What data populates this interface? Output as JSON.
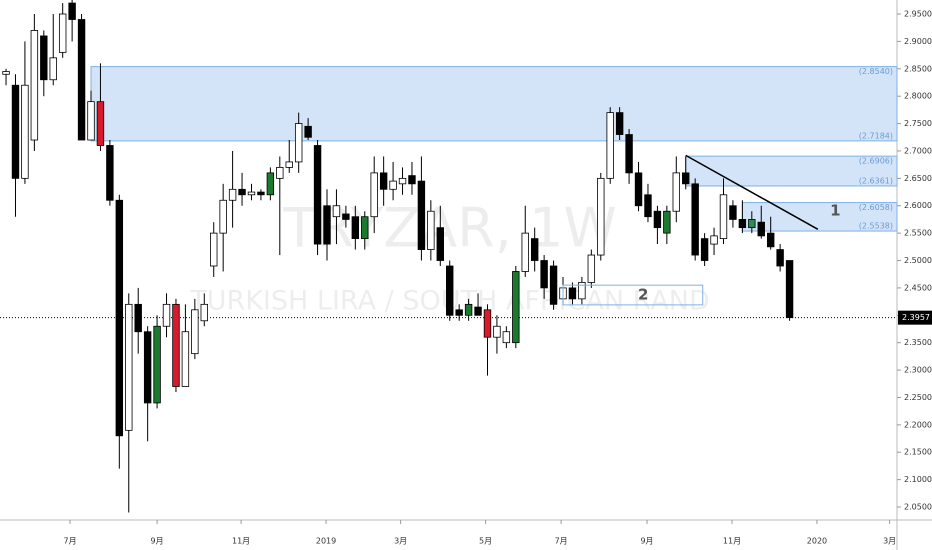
{
  "chart_data": {
    "type": "candlestick",
    "title": "TRYZAR, 1W",
    "subtitle": "TURKISH LIRA / SOUTH AFRICAN RAND",
    "x": [
      0,
      1,
      2,
      3,
      4,
      5,
      6,
      7,
      8,
      9,
      10,
      11,
      12,
      13,
      14,
      15,
      16,
      17,
      18,
      19,
      20,
      21,
      22,
      23,
      24,
      25,
      26,
      27,
      28,
      29,
      30,
      31,
      32,
      33,
      34,
      35,
      36,
      37,
      38,
      39,
      40,
      41,
      42,
      43,
      44,
      45,
      46,
      47,
      48,
      49,
      50,
      51,
      52,
      53,
      54,
      55,
      56,
      57,
      58,
      59,
      60,
      61,
      62,
      63,
      64,
      65,
      66,
      67,
      68,
      69,
      70,
      71,
      72,
      73,
      74,
      75,
      76,
      77,
      78,
      79,
      80,
      81,
      82,
      83
    ],
    "open": [
      2.84,
      2.82,
      2.65,
      2.72,
      2.91,
      2.83,
      2.88,
      2.97,
      2.94,
      2.72,
      2.79,
      2.71,
      2.61,
      2.19,
      2.42,
      2.37,
      2.24,
      2.38,
      2.42,
      2.27,
      2.33,
      2.39,
      2.49,
      2.55,
      2.61,
      2.63,
      2.62,
      2.625,
      2.62,
      2.65,
      2.67,
      2.68,
      2.745,
      2.71,
      2.6,
      2.58,
      2.585,
      2.58,
      2.54,
      2.58,
      2.66,
      2.63,
      2.64,
      2.655,
      2.645,
      2.52,
      2.56,
      2.49,
      2.41,
      2.4,
      2.415,
      2.41,
      2.36,
      2.35,
      2.35,
      2.48,
      2.54,
      2.5,
      2.49,
      2.43,
      2.45,
      2.43,
      2.46,
      2.51,
      2.65,
      2.77,
      2.73,
      2.66,
      2.62,
      2.59,
      2.55,
      2.59,
      2.66,
      2.64,
      2.54,
      2.53,
      2.54,
      2.6,
      2.575,
      2.56,
      2.57,
      2.55,
      2.52,
      2.5
    ],
    "high": [
      2.85,
      2.84,
      2.9,
      2.95,
      2.92,
      2.95,
      2.97,
      2.98,
      2.95,
      2.81,
      2.86,
      2.72,
      2.62,
      2.44,
      2.45,
      2.38,
      2.4,
      2.44,
      2.43,
      2.42,
      2.43,
      2.44,
      2.57,
      2.64,
      2.7,
      2.66,
      2.64,
      2.63,
      2.67,
      2.69,
      2.72,
      2.77,
      2.76,
      2.72,
      2.63,
      2.63,
      2.6,
      2.6,
      2.59,
      2.69,
      2.69,
      2.68,
      2.67,
      2.68,
      2.69,
      2.61,
      2.6,
      2.5,
      2.42,
      2.43,
      2.44,
      2.42,
      2.4,
      2.38,
      2.49,
      2.6,
      2.56,
      2.51,
      2.5,
      2.47,
      2.46,
      2.47,
      2.52,
      2.66,
      2.78,
      2.78,
      2.74,
      2.68,
      2.64,
      2.6,
      2.6,
      2.69,
      2.69,
      2.65,
      2.55,
      2.56,
      2.65,
      2.61,
      2.61,
      2.59,
      2.6,
      2.58,
      2.53,
      2.5
    ],
    "low": [
      2.82,
      2.58,
      2.64,
      2.7,
      2.8,
      2.82,
      2.87,
      2.9,
      2.72,
      2.72,
      2.7,
      2.6,
      2.12,
      2.04,
      2.33,
      2.17,
      2.23,
      2.36,
      2.26,
      2.27,
      2.32,
      2.38,
      2.47,
      2.48,
      2.56,
      2.6,
      2.61,
      2.61,
      2.61,
      2.51,
      2.66,
      2.66,
      2.72,
      2.51,
      2.5,
      2.53,
      2.56,
      2.52,
      2.52,
      2.55,
      2.6,
      2.61,
      2.62,
      2.62,
      2.5,
      2.5,
      2.49,
      2.39,
      2.39,
      2.39,
      2.4,
      2.29,
      2.33,
      2.34,
      2.34,
      2.47,
      2.48,
      2.43,
      2.41,
      2.42,
      2.42,
      2.42,
      2.45,
      2.5,
      2.64,
      2.72,
      2.64,
      2.59,
      2.57,
      2.53,
      2.53,
      2.57,
      2.63,
      2.5,
      2.49,
      2.51,
      2.53,
      2.56,
      2.55,
      2.55,
      2.54,
      2.52,
      2.48,
      2.39
    ],
    "close": [
      2.845,
      2.65,
      2.82,
      2.92,
      2.83,
      2.87,
      2.95,
      2.94,
      2.72,
      2.79,
      2.71,
      2.61,
      2.18,
      2.42,
      2.37,
      2.24,
      2.38,
      2.42,
      2.27,
      2.37,
      2.41,
      2.42,
      2.55,
      2.61,
      2.63,
      2.62,
      2.625,
      2.62,
      2.66,
      2.67,
      2.68,
      2.75,
      2.725,
      2.53,
      2.53,
      2.6,
      2.575,
      2.54,
      2.58,
      2.66,
      2.63,
      2.645,
      2.65,
      2.64,
      2.52,
      2.59,
      2.5,
      2.4,
      2.4,
      2.42,
      2.4,
      2.36,
      2.38,
      2.37,
      2.48,
      2.55,
      2.5,
      2.45,
      2.42,
      2.45,
      2.43,
      2.46,
      2.51,
      2.65,
      2.77,
      2.73,
      2.66,
      2.6,
      2.58,
      2.56,
      2.59,
      2.66,
      2.64,
      2.51,
      2.5,
      2.545,
      2.62,
      2.575,
      2.56,
      2.575,
      2.545,
      2.525,
      2.49,
      2.3957
    ],
    "colors": [
      null,
      null,
      null,
      null,
      null,
      null,
      null,
      null,
      null,
      null,
      "#d81b2c",
      null,
      null,
      null,
      null,
      null,
      "#1b7a2d",
      null,
      "#d81b2c",
      null,
      null,
      null,
      null,
      null,
      null,
      null,
      null,
      null,
      "#1b7a2d",
      null,
      null,
      null,
      null,
      null,
      null,
      null,
      null,
      null,
      "#1b7a2d",
      null,
      null,
      null,
      null,
      null,
      null,
      null,
      null,
      null,
      null,
      "#1b7a2d",
      null,
      "#d81b2c",
      null,
      null,
      "#1b7a2d",
      null,
      null,
      null,
      null,
      null,
      null,
      null,
      null,
      null,
      null,
      null,
      null,
      null,
      null,
      null,
      "#1b7a2d",
      null,
      null,
      null,
      null,
      null,
      null,
      null,
      null,
      "#2e8b57",
      null,
      null,
      null,
      null
    ],
    "up_color": "#ffffff",
    "down_color": "#000000",
    "xlim": [
      -0.64,
      94.38
    ],
    "xticks": [
      {
        "value": 6.78,
        "label": "7月"
      },
      {
        "value": 16.0,
        "label": "9月"
      },
      {
        "value": 24.9,
        "label": "11月"
      },
      {
        "value": 33.9,
        "label": "2019"
      },
      {
        "value": 41.8,
        "label": "3月"
      },
      {
        "value": 50.8,
        "label": "5月"
      },
      {
        "value": 58.8,
        "label": "7月"
      },
      {
        "value": 67.9,
        "label": "9月"
      },
      {
        "value": 76.9,
        "label": "11月"
      },
      {
        "value": 85.9,
        "label": "2020"
      },
      {
        "value": 93.6,
        "label": "3月"
      }
    ],
    "ylim": [
      2.0263,
      2.9756
    ],
    "yticks": [
      {
        "value": 2.05,
        "label": "2.0500"
      },
      {
        "value": 2.1,
        "label": "2.1000"
      },
      {
        "value": 2.15,
        "label": "2.1500"
      },
      {
        "value": 2.2,
        "label": "2.2000"
      },
      {
        "value": 2.25,
        "label": "2.2500"
      },
      {
        "value": 2.3,
        "label": "2.3000"
      },
      {
        "value": 2.35,
        "label": "2.3500"
      },
      {
        "value": 2.4,
        "label": "2.4000"
      },
      {
        "value": 2.45,
        "label": "2.4500"
      },
      {
        "value": 2.5,
        "label": "2.5000"
      },
      {
        "value": 2.55,
        "label": "2.5500"
      },
      {
        "value": 2.6,
        "label": "2.6000"
      },
      {
        "value": 2.65,
        "label": "2.6500"
      },
      {
        "value": 2.7,
        "label": "2.7000"
      },
      {
        "value": 2.75,
        "label": "2.7500"
      },
      {
        "value": 2.8,
        "label": "2.8000"
      },
      {
        "value": 2.85,
        "label": "2.8500"
      },
      {
        "value": 2.9,
        "label": "2.9000"
      },
      {
        "value": 2.95,
        "label": "2.9500"
      }
    ],
    "grid": false,
    "zones": [
      {
        "x_start": 9,
        "high": 2.854,
        "low": 2.7184,
        "labels": [
          "(2.8540)",
          "(2.7184)"
        ]
      },
      {
        "x_start": 72,
        "high": 2.6906,
        "low": 2.6361,
        "labels": [
          "(2.6906)",
          "(2.6361)"
        ]
      },
      {
        "x_start": 78,
        "high": 2.6058,
        "low": 2.5538,
        "labels": [
          "(2.6058)",
          "(2.5538)"
        ]
      }
    ],
    "trend": {
      "x": [
        72,
        86
      ],
      "y": [
        2.692,
        2.557
      ],
      "label": "1",
      "label_x": 87.3,
      "label_y": 2.59
    },
    "box": {
      "x": [
        59,
        73.8
      ],
      "y": [
        2.419,
        2.455
      ],
      "label": "2",
      "label_x": 67.5,
      "label_y": 2.437
    },
    "last_price": {
      "value": 2.3957,
      "label": "2.3957"
    }
  }
}
